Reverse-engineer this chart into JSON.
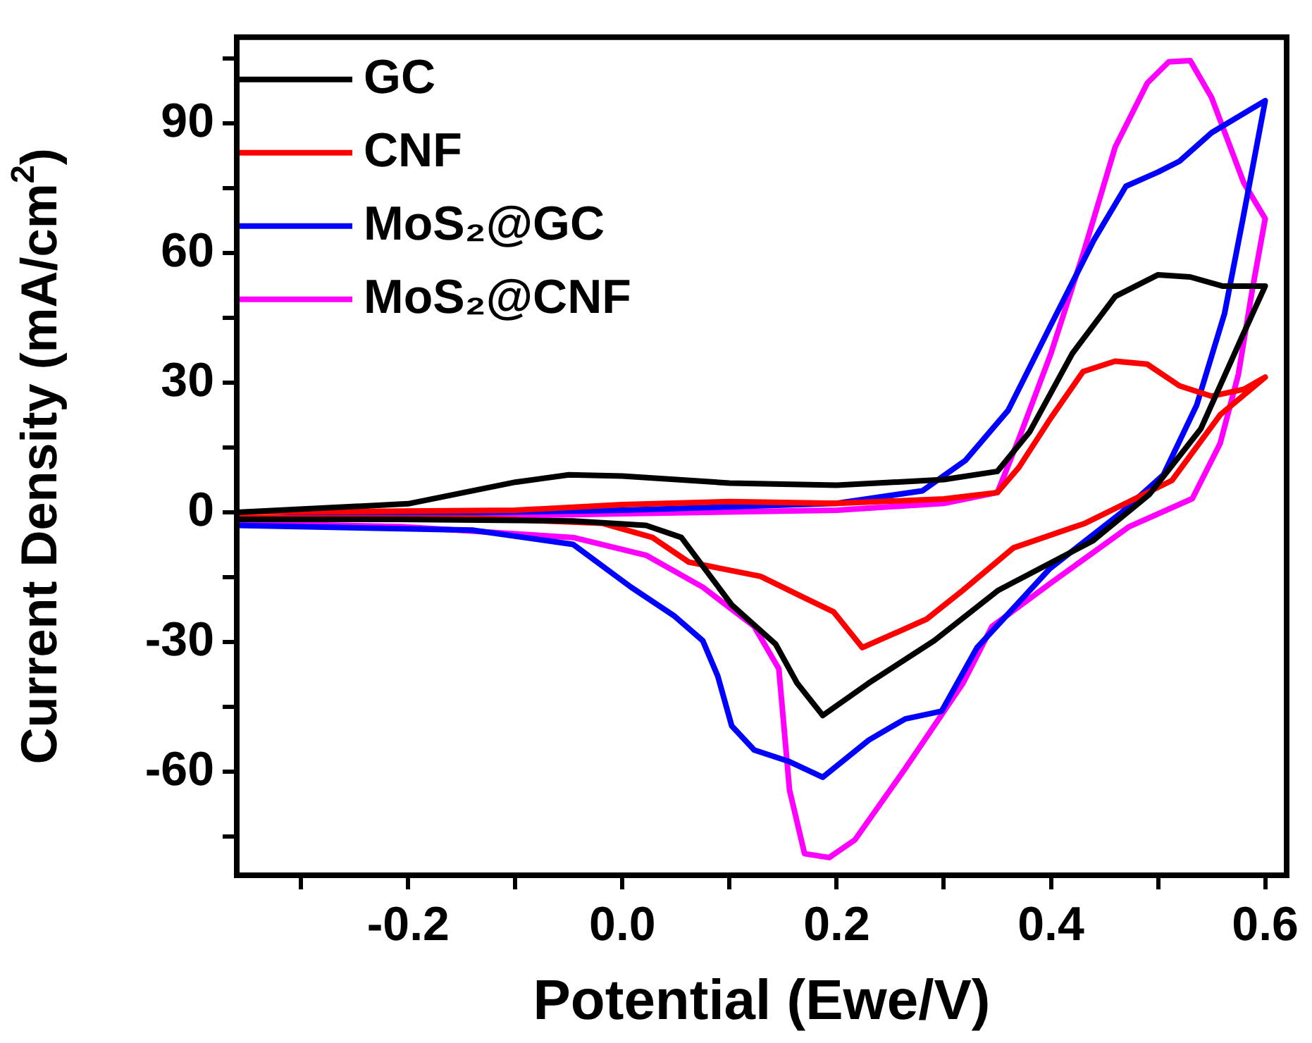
{
  "chart_data": {
    "type": "line",
    "xlabel": "Potential (Ewe/V)",
    "ylabel": "Current Density (mA/cm$^{2}$)",
    "xlim": [
      -0.36,
      0.62
    ],
    "ylim": [
      -84,
      110
    ],
    "xticks": [
      {
        "value": -0.3,
        "label": null
      },
      -0.2,
      {
        "value": -0.1,
        "label": null
      },
      {
        "value": 0,
        "label": "0.0"
      },
      {
        "value": 0.1,
        "label": null
      },
      0.2,
      {
        "value": 0.3,
        "label": null
      },
      0.4,
      {
        "value": 0.5,
        "label": null
      },
      0.6
    ],
    "yticks": [
      {
        "value": -75,
        "label": null
      },
      -60,
      {
        "value": -45,
        "label": null
      },
      -30,
      {
        "value": -15,
        "label": null
      },
      0,
      {
        "value": 15,
        "label": null
      },
      30,
      {
        "value": 45,
        "label": null
      },
      60,
      {
        "value": 75,
        "label": null
      },
      90,
      {
        "value": 105,
        "label": null
      }
    ],
    "grid": false,
    "legend": "top left",
    "marker": "none",
    "line_style": "solid",
    "series": [
      {
        "name": "GC",
        "color": "#000000",
        "x": [
          -0.36,
          -0.2,
          -0.1,
          -0.05,
          0.0,
          0.1,
          0.2,
          0.3,
          0.35,
          0.38,
          0.42,
          0.46,
          0.5,
          0.53,
          0.56,
          0.6,
          0.579,
          0.54,
          0.492,
          0.439,
          0.351,
          0.291,
          0.23,
          0.187,
          0.163,
          0.143,
          0.102,
          0.055,
          0.022,
          -0.046,
          -0.207,
          -0.36
        ],
        "values": [
          0,
          2,
          7,
          8.7,
          8.4,
          6.8,
          6.3,
          7.6,
          9.5,
          18.6,
          36.8,
          50,
          55,
          54.5,
          52.4,
          52.4,
          41,
          19.4,
          4.2,
          -6.6,
          -18,
          -29.7,
          -39.5,
          -47,
          -39.5,
          -30.5,
          -21.4,
          -5.8,
          -3,
          -2,
          -1.6,
          -1.6
        ]
      },
      {
        "name": "CNF",
        "color": "#ff0000",
        "x": [
          -0.36,
          -0.1,
          0.0,
          0.1,
          0.2,
          0.3,
          0.35,
          0.37,
          0.4,
          0.43,
          0.46,
          0.49,
          0.52,
          0.55,
          0.58,
          0.6,
          0.558,
          0.513,
          0.473,
          0.432,
          0.365,
          0.318,
          0.284,
          0.224,
          0.197,
          0.17,
          0.129,
          0.062,
          0.028,
          -0.019,
          -0.14,
          -0.36
        ],
        "values": [
          0,
          0.5,
          1.8,
          2.5,
          2.1,
          3.1,
          4.6,
          10.4,
          21.9,
          32.6,
          35,
          34.3,
          29.3,
          26.9,
          28.5,
          31.3,
          22.6,
          7.4,
          2.5,
          -2.5,
          -8.2,
          -18,
          -24.7,
          -31.3,
          -23,
          -19.8,
          -14.8,
          -11.5,
          -5.8,
          -2.5,
          -1.3,
          -1.3
        ]
      },
      {
        "name": "MoS₂@GC",
        "color": "#0000ff",
        "x": [
          -0.36,
          -0.2,
          0.0,
          0.2,
          0.28,
          0.32,
          0.36,
          0.4,
          0.44,
          0.47,
          0.5,
          0.52,
          0.55,
          0.6,
          0.579,
          0.562,
          0.536,
          0.505,
          0.466,
          0.399,
          0.331,
          0.298,
          0.264,
          0.23,
          0.187,
          0.156,
          0.123,
          0.102,
          0.089,
          0.075,
          0.048,
          0.008,
          -0.046,
          -0.14,
          -0.36
        ],
        "values": [
          -1.5,
          -0.3,
          0.5,
          2.1,
          5,
          12,
          23.6,
          43.4,
          63,
          75.5,
          78.8,
          81.3,
          87.9,
          95.3,
          67.7,
          46,
          24.8,
          8.7,
          0,
          -13,
          -31.3,
          -46,
          -47.8,
          -52.7,
          -61.3,
          -57.7,
          -55,
          -49.4,
          -37.9,
          -29.7,
          -23.9,
          -17.3,
          -7.4,
          -4.1,
          -3
        ]
      },
      {
        "name": "MoS₂@CNF",
        "color": "#ff00ff",
        "x": [
          -0.36,
          -0.2,
          0.0,
          0.2,
          0.3,
          0.35,
          0.37,
          0.4,
          0.43,
          0.46,
          0.49,
          0.51,
          0.53,
          0.55,
          0.58,
          0.6,
          0.588,
          0.575,
          0.558,
          0.532,
          0.473,
          0.399,
          0.345,
          0.318,
          0.264,
          0.217,
          0.193,
          0.17,
          0.156,
          0.146,
          0.123,
          0.075,
          0.022,
          -0.046,
          -0.207,
          -0.36
        ],
        "values": [
          -2,
          -1.2,
          -0.3,
          0.5,
          2.1,
          4.6,
          17,
          36.8,
          59.8,
          84.6,
          99.4,
          104.3,
          104.6,
          96,
          76.3,
          68,
          51.6,
          32,
          16,
          3.2,
          -3.3,
          -16.5,
          -26.4,
          -39.5,
          -59.3,
          -75.8,
          -79.9,
          -79,
          -64.3,
          -36.2,
          -26.4,
          -17.3,
          -9.9,
          -5.8,
          -3.3,
          -2.5
        ]
      }
    ]
  }
}
